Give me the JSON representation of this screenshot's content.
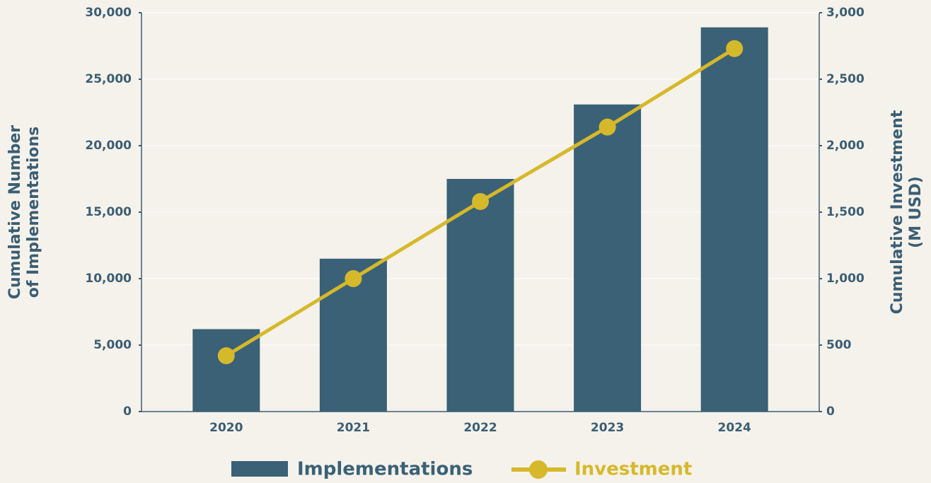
{
  "chart_data": {
    "type": "bar_line",
    "categories": [
      "2020",
      "2021",
      "2022",
      "2023",
      "2024"
    ],
    "series": [
      {
        "name": "Implementations",
        "color": "#3a6176",
        "type": "bar",
        "values": [
          6200,
          11500,
          17500,
          23100,
          28900
        ]
      },
      {
        "name": "Investment",
        "color": "#d6b82b",
        "type": "line",
        "axis": "y2",
        "values": [
          420,
          1000,
          1580,
          2140,
          2730
        ]
      }
    ],
    "ylabel": [
      "Cumulative Number",
      "of Implementations"
    ],
    "y2label": [
      "Cumulative Investment",
      "(M USD)"
    ],
    "ylim": [
      0,
      30000
    ],
    "yticks": [
      0,
      {
        "value": 5000,
        "label": "5,000"
      },
      {
        "value": 10000,
        "label": "10,000"
      },
      {
        "value": 15000,
        "label": "15,000"
      },
      {
        "value": 20000,
        "label": "20,000"
      },
      {
        "value": 25000,
        "label": "25,000"
      },
      {
        "value": 30000,
        "label": "30,000"
      }
    ],
    "y2lim": [
      0,
      3000
    ],
    "y2ticks": [
      0,
      500,
      {
        "value": 1000,
        "label": "1,000"
      },
      {
        "value": 1500,
        "label": "1,500"
      },
      {
        "value": 2000,
        "label": "2,000"
      },
      {
        "value": 2500,
        "label": "2,500"
      },
      {
        "value": 3000,
        "label": "3,000"
      }
    ],
    "grid": true,
    "legend": "bottom"
  }
}
